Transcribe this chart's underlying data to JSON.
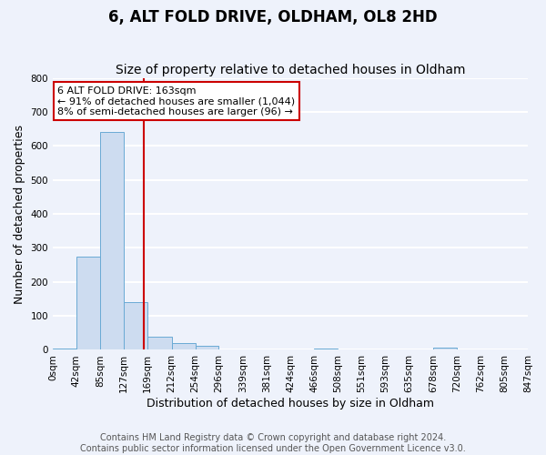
{
  "title": "6, ALT FOLD DRIVE, OLDHAM, OL8 2HD",
  "subtitle": "Size of property relative to detached houses in Oldham",
  "xlabel": "Distribution of detached houses by size in Oldham",
  "ylabel": "Number of detached properties",
  "bin_edges": [
    0,
    42,
    85,
    127,
    169,
    212,
    254,
    296,
    339,
    381,
    424,
    466,
    508,
    551,
    593,
    635,
    678,
    720,
    762,
    805,
    847
  ],
  "bin_labels": [
    "0sqm",
    "42sqm",
    "85sqm",
    "127sqm",
    "169sqm",
    "212sqm",
    "254sqm",
    "296sqm",
    "339sqm",
    "381sqm",
    "424sqm",
    "466sqm",
    "508sqm",
    "551sqm",
    "593sqm",
    "635sqm",
    "678sqm",
    "720sqm",
    "762sqm",
    "805sqm",
    "847sqm"
  ],
  "counts": [
    5,
    275,
    640,
    140,
    38,
    20,
    13,
    0,
    0,
    0,
    0,
    5,
    0,
    0,
    0,
    0,
    7,
    0,
    0,
    0
  ],
  "bar_color": "#cddcf0",
  "bar_edge_color": "#6aaad4",
  "property_size": 163,
  "vline_color": "#cc0000",
  "annotation_line1": "6 ALT FOLD DRIVE: 163sqm",
  "annotation_line2": "← 91% of detached houses are smaller (1,044)",
  "annotation_line3": "8% of semi-detached houses are larger (96) →",
  "annotation_box_color": "#ffffff",
  "annotation_box_edge_color": "#cc0000",
  "ylim": [
    0,
    800
  ],
  "yticks": [
    0,
    100,
    200,
    300,
    400,
    500,
    600,
    700,
    800
  ],
  "footer_line1": "Contains HM Land Registry data © Crown copyright and database right 2024.",
  "footer_line2": "Contains public sector information licensed under the Open Government Licence v3.0.",
  "bg_color": "#eef2fb",
  "grid_color": "#ffffff",
  "title_fontsize": 12,
  "subtitle_fontsize": 10,
  "label_fontsize": 9,
  "tick_fontsize": 7.5,
  "footer_fontsize": 7,
  "annot_fontsize": 8
}
